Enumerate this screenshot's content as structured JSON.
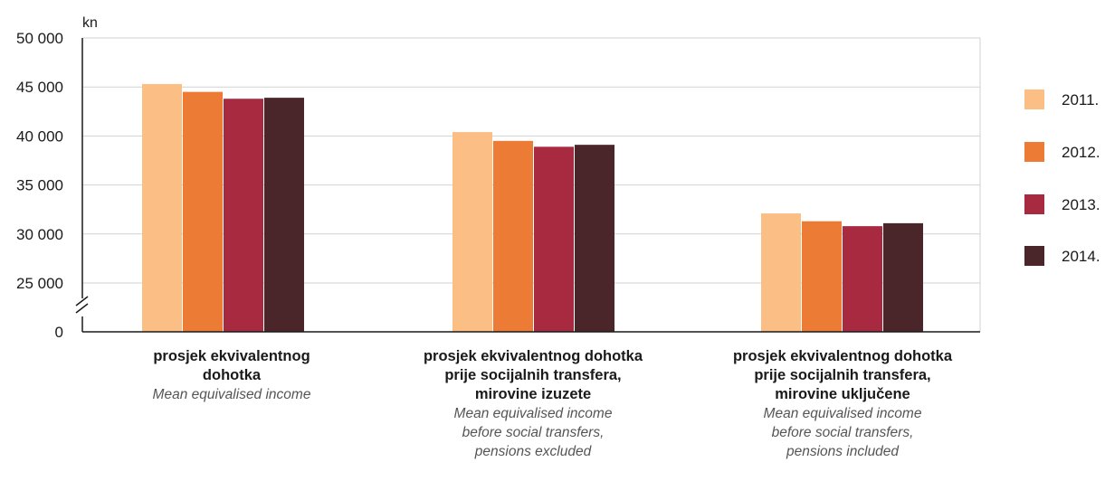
{
  "chart_data": {
    "type": "bar",
    "ylabel": "kn",
    "ylim": [
      0,
      50000
    ],
    "axis_break": true,
    "yticks": [
      "50 000",
      "45 000",
      "40 000",
      "35 000",
      "30 000",
      "25 000",
      "0"
    ],
    "ytick_values": [
      50000,
      45000,
      40000,
      35000,
      30000,
      25000,
      0
    ],
    "grid": true,
    "legend_position": "right",
    "categories": [
      {
        "label_hr": "prosjek ekvivalentnog\ndohotka",
        "label_en": "Mean equivalised income"
      },
      {
        "label_hr": "prosjek ekvivalentnog dohotka\nprije socijalnih transfera,\nmirovine izuzete",
        "label_en": "Mean equivalised income\nbefore social transfers,\npensions excluded"
      },
      {
        "label_hr": "prosjek ekvivalentnog dohotka\nprije socijalnih transfera,\nmirovine uključene",
        "label_en": "Mean equivalised income\nbefore social transfers,\npensions included"
      }
    ],
    "series": [
      {
        "name": "2011.",
        "color": "#fbbf86",
        "values": [
          45300,
          40400,
          32100
        ]
      },
      {
        "name": "2012.",
        "color": "#ec7b35",
        "values": [
          44500,
          39500,
          31300
        ]
      },
      {
        "name": "2013.",
        "color": "#a82a40",
        "values": [
          43800,
          38900,
          30800
        ]
      },
      {
        "name": "2014.",
        "color": "#4a262a",
        "values": [
          43900,
          39100,
          31100
        ]
      }
    ]
  }
}
